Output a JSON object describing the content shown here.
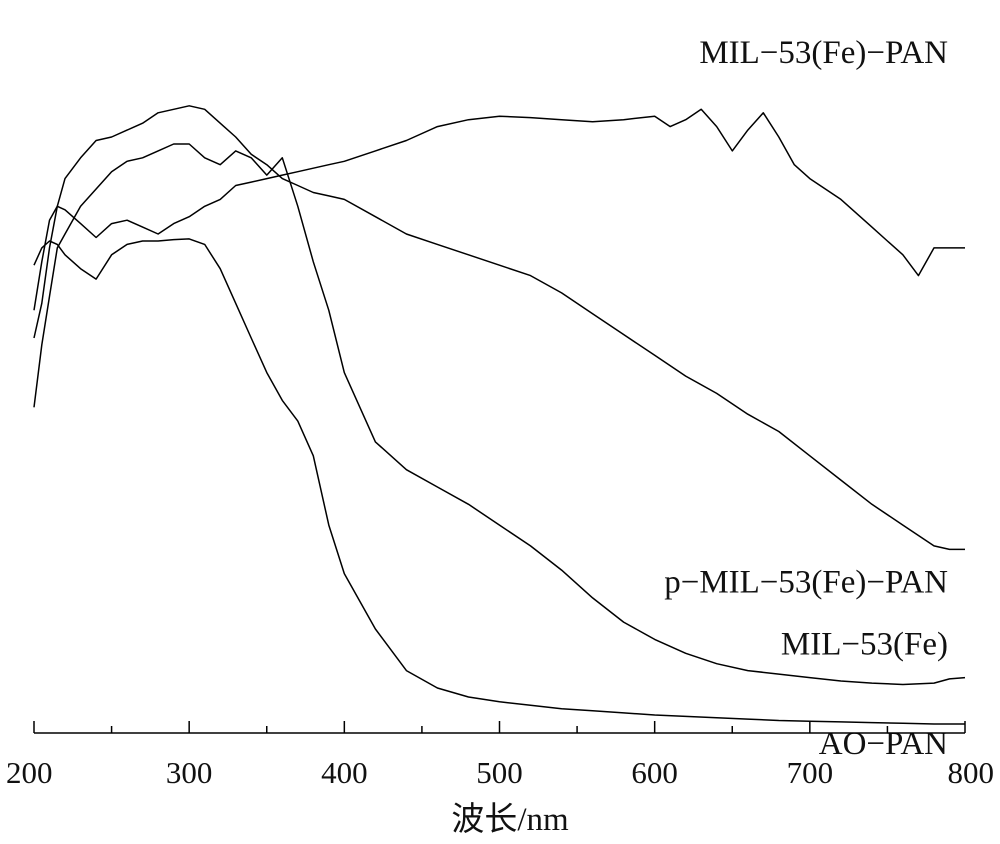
{
  "chart_data": {
    "type": "line",
    "title": "",
    "xlabel": "波长/nm",
    "ylabel": "",
    "xlim": [
      200,
      800
    ],
    "ylim": [
      0,
      1
    ],
    "x_ticks": [
      200,
      300,
      400,
      500,
      600,
      700,
      800
    ],
    "x_tick_labels": [
      "200",
      "300",
      "400",
      "500",
      "600",
      "700",
      "800"
    ],
    "grid": false,
    "legend": "none",
    "series": [
      {
        "name": "MIL−53(Fe)−PAN",
        "x": [
          200,
          205,
          210,
          215,
          220,
          230,
          240,
          250,
          260,
          270,
          280,
          290,
          300,
          310,
          320,
          330,
          340,
          350,
          360,
          370,
          380,
          390,
          400,
          420,
          440,
          460,
          480,
          500,
          520,
          540,
          560,
          580,
          600,
          610,
          620,
          630,
          640,
          650,
          660,
          670,
          680,
          690,
          700,
          720,
          740,
          750,
          760,
          770,
          780,
          790,
          800
        ],
        "y": [
          0.61,
          0.68,
          0.74,
          0.76,
          0.755,
          0.735,
          0.715,
          0.735,
          0.74,
          0.73,
          0.72,
          0.735,
          0.745,
          0.76,
          0.77,
          0.79,
          0.795,
          0.8,
          0.805,
          0.81,
          0.815,
          0.82,
          0.825,
          0.84,
          0.855,
          0.875,
          0.885,
          0.89,
          0.888,
          0.885,
          0.882,
          0.885,
          0.89,
          0.875,
          0.885,
          0.9,
          0.875,
          0.84,
          0.87,
          0.895,
          0.86,
          0.82,
          0.8,
          0.77,
          0.73,
          0.71,
          0.69,
          0.66,
          0.7,
          0.7,
          0.7
        ]
      },
      {
        "name": "p−MIL−53(Fe)−PAN",
        "x": [
          200,
          205,
          210,
          215,
          220,
          230,
          240,
          250,
          260,
          270,
          280,
          290,
          300,
          310,
          320,
          330,
          340,
          350,
          360,
          370,
          380,
          390,
          400,
          420,
          440,
          460,
          480,
          500,
          520,
          540,
          560,
          580,
          600,
          620,
          640,
          660,
          680,
          700,
          720,
          740,
          760,
          780,
          790,
          800
        ],
        "y": [
          0.57,
          0.62,
          0.7,
          0.76,
          0.8,
          0.83,
          0.855,
          0.86,
          0.87,
          0.88,
          0.895,
          0.9,
          0.905,
          0.9,
          0.88,
          0.86,
          0.835,
          0.82,
          0.8,
          0.79,
          0.78,
          0.775,
          0.77,
          0.745,
          0.72,
          0.705,
          0.69,
          0.675,
          0.66,
          0.635,
          0.605,
          0.575,
          0.545,
          0.515,
          0.49,
          0.46,
          0.435,
          0.4,
          0.365,
          0.33,
          0.3,
          0.27,
          0.265,
          0.265
        ]
      },
      {
        "name": "MIL−53(Fe)",
        "x": [
          200,
          205,
          210,
          215,
          220,
          230,
          240,
          250,
          260,
          270,
          280,
          290,
          300,
          310,
          320,
          330,
          340,
          350,
          360,
          370,
          380,
          390,
          400,
          420,
          440,
          460,
          480,
          500,
          520,
          540,
          560,
          580,
          600,
          620,
          640,
          660,
          680,
          700,
          720,
          740,
          760,
          780,
          790,
          800
        ],
        "y": [
          0.47,
          0.56,
          0.63,
          0.7,
          0.72,
          0.76,
          0.785,
          0.81,
          0.825,
          0.83,
          0.84,
          0.85,
          0.85,
          0.83,
          0.82,
          0.84,
          0.83,
          0.805,
          0.83,
          0.76,
          0.68,
          0.61,
          0.52,
          0.42,
          0.38,
          0.355,
          0.33,
          0.3,
          0.27,
          0.235,
          0.195,
          0.16,
          0.135,
          0.115,
          0.1,
          0.09,
          0.085,
          0.08,
          0.075,
          0.072,
          0.07,
          0.072,
          0.078,
          0.08
        ]
      },
      {
        "name": "AO−PAN",
        "x": [
          200,
          205,
          210,
          215,
          220,
          230,
          240,
          250,
          260,
          270,
          280,
          290,
          300,
          310,
          320,
          330,
          340,
          350,
          360,
          370,
          380,
          390,
          400,
          420,
          440,
          460,
          480,
          500,
          520,
          540,
          560,
          580,
          600,
          620,
          640,
          660,
          680,
          700,
          720,
          740,
          760,
          780,
          800
        ],
        "y": [
          0.675,
          0.7,
          0.71,
          0.705,
          0.69,
          0.67,
          0.655,
          0.69,
          0.705,
          0.71,
          0.71,
          0.712,
          0.713,
          0.705,
          0.67,
          0.62,
          0.57,
          0.52,
          0.48,
          0.45,
          0.4,
          0.3,
          0.23,
          0.15,
          0.09,
          0.065,
          0.052,
          0.045,
          0.04,
          0.035,
          0.032,
          0.029,
          0.026,
          0.024,
          0.022,
          0.02,
          0.018,
          0.017,
          0.016,
          0.015,
          0.014,
          0.013,
          0.013
        ]
      }
    ]
  }
}
